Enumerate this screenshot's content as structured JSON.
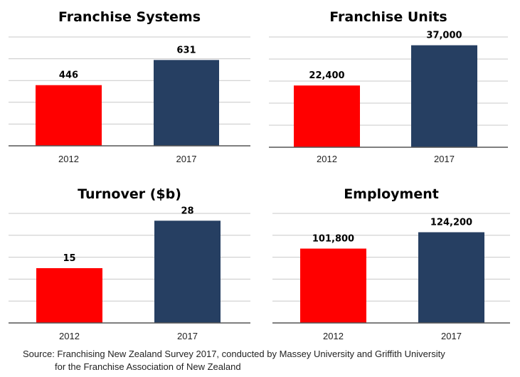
{
  "chart_data": [
    {
      "type": "bar",
      "title": "Franchise Systems",
      "categories": [
        "2012",
        "2017"
      ],
      "values": [
        446,
        631
      ],
      "value_labels": [
        "446",
        "631"
      ],
      "colors": [
        "#ff0000",
        "#263f62"
      ],
      "ylim": [
        0,
        800
      ],
      "grid": true
    },
    {
      "type": "bar",
      "title": "Franchise Units",
      "categories": [
        "2012",
        "2017"
      ],
      "values": [
        22400,
        37000
      ],
      "value_labels": [
        "22,400",
        "37,000"
      ],
      "colors": [
        "#ff0000",
        "#263f62"
      ],
      "ylim": [
        0,
        40000
      ],
      "grid": true
    },
    {
      "type": "bar",
      "title": "Turnover ($b)",
      "categories": [
        "2012",
        "2017"
      ],
      "values": [
        15,
        28
      ],
      "value_labels": [
        "15",
        "28"
      ],
      "colors": [
        "#ff0000",
        "#263f62"
      ],
      "ylim": [
        0,
        30
      ],
      "grid": true
    },
    {
      "type": "bar",
      "title": "Employment",
      "categories": [
        "2012",
        "2017"
      ],
      "values": [
        101800,
        124200
      ],
      "value_labels": [
        "101,800",
        "124,200"
      ],
      "colors": [
        "#ff0000",
        "#263f62"
      ],
      "ylim": [
        0,
        150000
      ],
      "grid": true
    }
  ],
  "source": {
    "line1": "Source: Franchising New Zealand Survey 2017, conducted by Massey University and Griffith University",
    "line2": "for the Franchise Association of New Zealand"
  }
}
